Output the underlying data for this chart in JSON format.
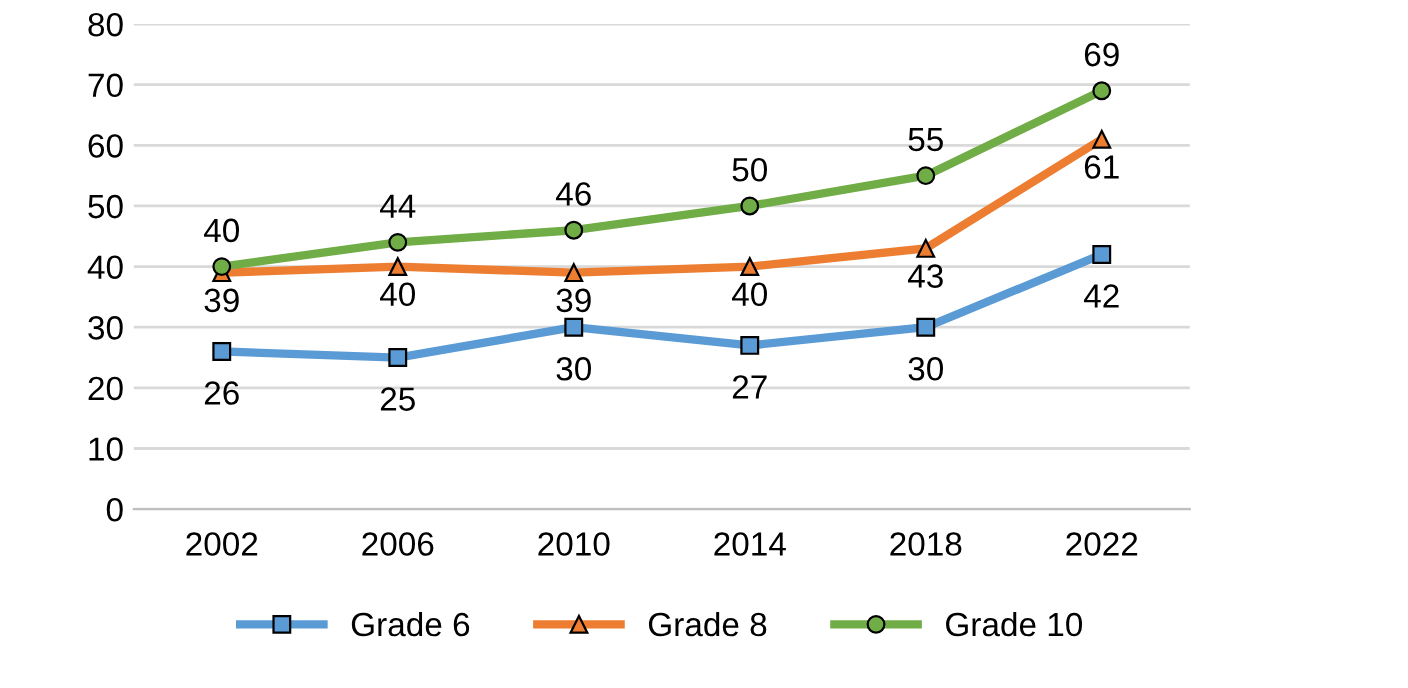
{
  "chart_data": {
    "type": "line",
    "categories": [
      "2002",
      "2006",
      "2010",
      "2014",
      "2018",
      "2022"
    ],
    "series": [
      {
        "name": "Grade 6",
        "color": "#5b9bd5",
        "marker": "square",
        "values": [
          26,
          25,
          30,
          27,
          30,
          42
        ]
      },
      {
        "name": "Grade 8",
        "color": "#ed7d31",
        "marker": "triangle",
        "values": [
          39,
          40,
          39,
          40,
          43,
          61
        ]
      },
      {
        "name": "Grade 10",
        "color": "#70ad47",
        "marker": "circle",
        "values": [
          40,
          44,
          46,
          50,
          55,
          69
        ]
      }
    ],
    "ylim": [
      0,
      80
    ],
    "yticks": [
      0,
      10,
      20,
      30,
      40,
      50,
      60,
      70,
      80
    ],
    "grid": "y",
    "legend": "bottom",
    "data_labels": true
  }
}
